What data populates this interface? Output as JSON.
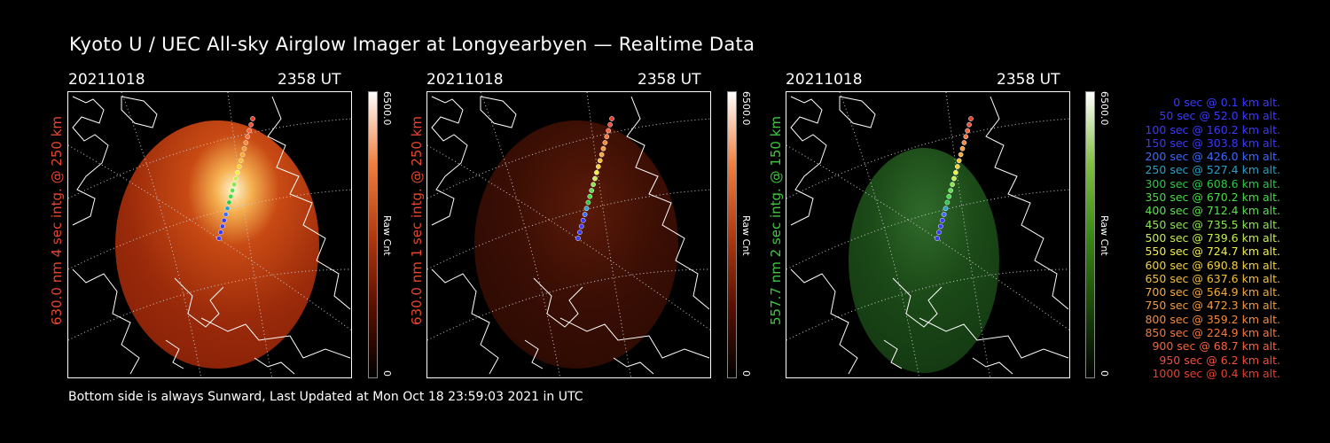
{
  "title": "Kyoto U / UEC All-sky Airglow Imager at Longyearbyen — Realtime Data",
  "footer": "Bottom side is always Sunward, Last Updated at Mon Oct 18 23:59:03 2021 in UTC",
  "panels": [
    {
      "date": "20211018",
      "ut": "2358 UT",
      "ylabel": "630.0 nm 4 sec intg. @ 250 km",
      "ylabel_color": "#e8452c",
      "cbar_max": "6500.0",
      "cbar_min": "0",
      "cbar_label": "Raw Cnt",
      "emission": "red-bright"
    },
    {
      "date": "20211018",
      "ut": "2358 UT",
      "ylabel": "630.0 nm 1 sec intg. @ 250 km",
      "ylabel_color": "#e8452c",
      "cbar_max": "6500.0",
      "cbar_min": "0",
      "cbar_label": "Raw Cnt",
      "emission": "red-dim"
    },
    {
      "date": "20211018",
      "ut": "2358 UT",
      "ylabel": "557.7 nm 2 sec intg. @ 150 km",
      "ylabel_color": "#3ec83e",
      "cbar_max": "6500.0",
      "cbar_min": "0",
      "cbar_label": "Raw Cnt",
      "emission": "green"
    }
  ],
  "legend": [
    {
      "text": "0 sec @   0.1 km alt.",
      "color": "#3a3aff"
    },
    {
      "text": "50 sec @  52.0 km alt.",
      "color": "#3a3aff"
    },
    {
      "text": "100 sec @ 160.2 km alt.",
      "color": "#3a3aff"
    },
    {
      "text": "150 sec @ 303.8 km alt.",
      "color": "#3a3aff"
    },
    {
      "text": "200 sec @ 426.0 km alt.",
      "color": "#3a6aff"
    },
    {
      "text": "250 sec @ 527.4 km alt.",
      "color": "#2aa0c8"
    },
    {
      "text": "300 sec @ 608.6 km alt.",
      "color": "#2ec846"
    },
    {
      "text": "350 sec @ 670.2 km alt.",
      "color": "#46dc46"
    },
    {
      "text": "400 sec @ 712.4 km alt.",
      "color": "#5ae050"
    },
    {
      "text": "450 sec @ 735.5 km alt.",
      "color": "#8ce650"
    },
    {
      "text": "500 sec @ 739.6 km alt.",
      "color": "#c8ee50"
    },
    {
      "text": "550 sec @ 724.7 km alt.",
      "color": "#f0f046"
    },
    {
      "text": "600 sec @ 690.8 km alt.",
      "color": "#f5d23c"
    },
    {
      "text": "650 sec @ 637.6 km alt.",
      "color": "#f5c03c"
    },
    {
      "text": "700 sec @ 564.9 km alt.",
      "color": "#f5aa3c"
    },
    {
      "text": "750 sec @ 472.3 km alt.",
      "color": "#f59a3c"
    },
    {
      "text": "800 sec @ 359.2 km alt.",
      "color": "#f58a3c"
    },
    {
      "text": "850 sec @ 224.9 km alt.",
      "color": "#f5783c"
    },
    {
      "text": "900 sec @  68.7 km alt.",
      "color": "#f5643c"
    },
    {
      "text": "950 sec @   6.2 km alt.",
      "color": "#f0503c"
    },
    {
      "text": "1000 sec @   0.4 km alt.",
      "color": "#e8402c"
    }
  ]
}
